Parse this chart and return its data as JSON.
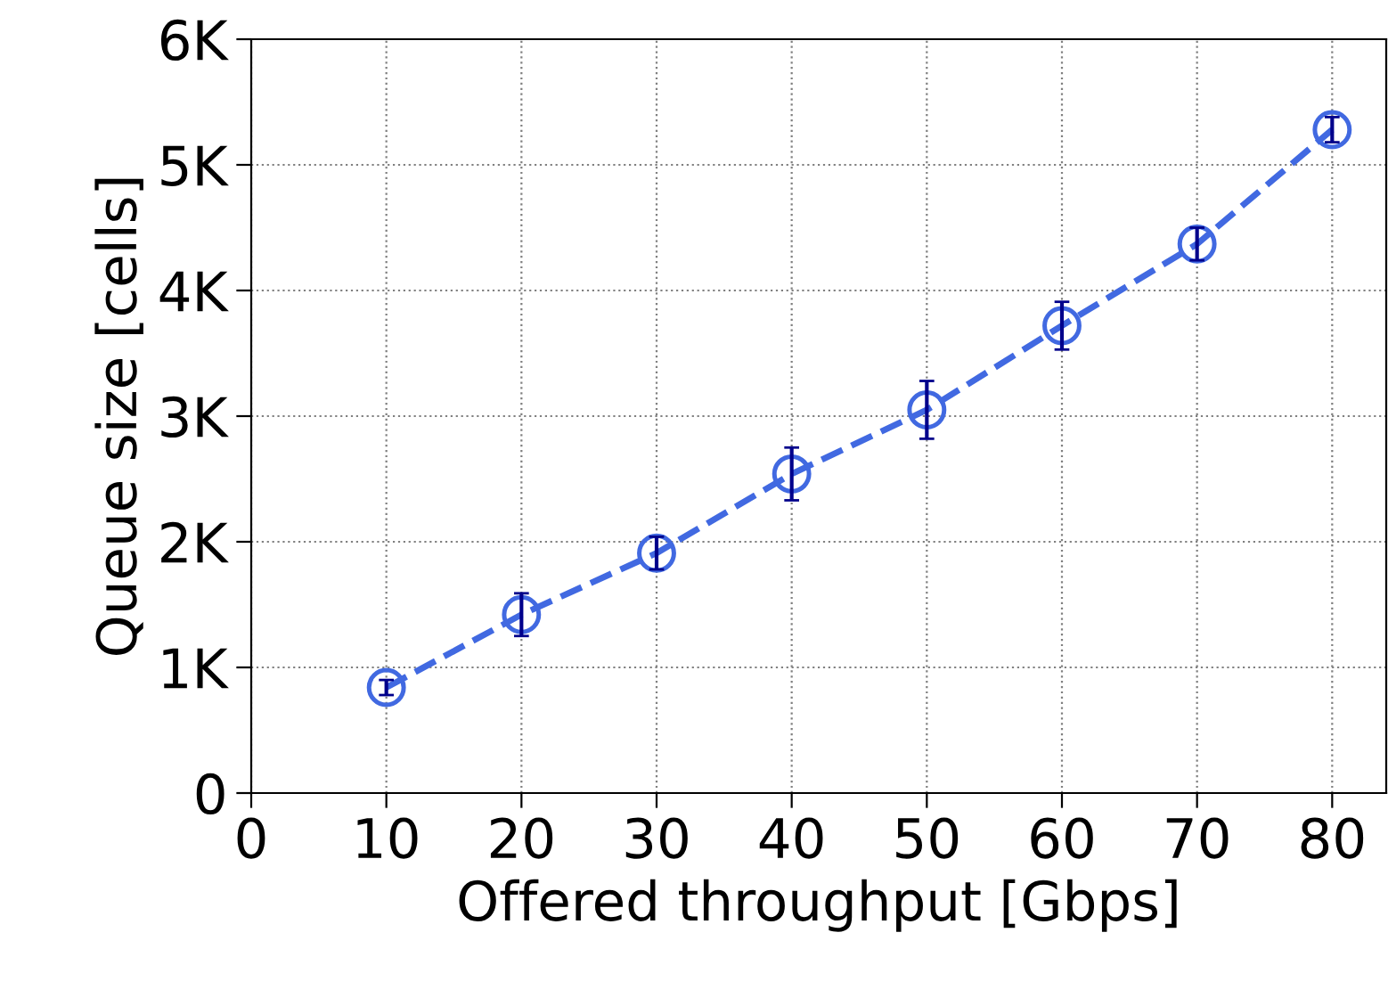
{
  "chart_data": {
    "type": "line",
    "xlabel": "Offered throughput [Gbps]",
    "ylabel": "Queue size [cells]",
    "x": [
      10,
      20,
      30,
      40,
      50,
      60,
      70,
      80
    ],
    "series": [
      {
        "color": "#4169e1",
        "values": [
          840,
          1420,
          1910,
          2540,
          3050,
          3720,
          4370,
          5280
        ],
        "errors": [
          60,
          170,
          130,
          210,
          230,
          190,
          130,
          100
        ]
      }
    ],
    "xlim": [
      0,
      84
    ],
    "xticks": [
      0,
      10,
      20,
      30,
      40,
      50,
      60,
      70,
      80
    ],
    "ylim": [
      0,
      6000
    ],
    "yticks": [
      0,
      {
        "value": 1000,
        "label": "1K"
      },
      {
        "value": 2000,
        "label": "2K"
      },
      {
        "value": 3000,
        "label": "3K"
      },
      {
        "value": 4000,
        "label": "4K"
      },
      {
        "value": 5000,
        "label": "5K"
      },
      {
        "value": 6000,
        "label": "6K"
      }
    ],
    "grid": true,
    "marker": "circle",
    "line_style": "dashed"
  }
}
